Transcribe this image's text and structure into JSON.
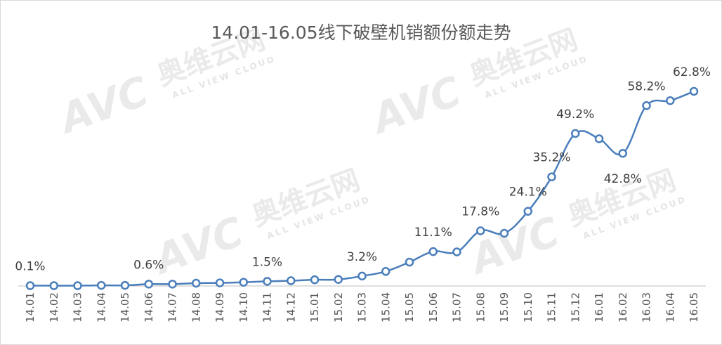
{
  "chart_data": {
    "type": "line",
    "title": "14.01-16.05线下破壁机销额份额走势",
    "xlabel": "",
    "ylabel": "",
    "categories": [
      "14.01",
      "14.02",
      "14.03",
      "14.04",
      "14.05",
      "14.06",
      "14.07",
      "14.08",
      "14.09",
      "14.10",
      "14.11",
      "14.12",
      "15.01",
      "15.02",
      "15.03",
      "15.04",
      "15.05",
      "15.06",
      "15.07",
      "15.08",
      "15.09",
      "15.10",
      "15.11",
      "15.12",
      "16.01",
      "16.02",
      "16.03",
      "16.04",
      "16.05"
    ],
    "series": [
      {
        "values": [
          0.1,
          0.1,
          0.1,
          0.2,
          0.2,
          0.6,
          0.6,
          0.9,
          1.0,
          1.2,
          1.5,
          1.7,
          2.0,
          2.1,
          3.2,
          4.7,
          7.7,
          11.1,
          11.0,
          17.8,
          17.0,
          24.1,
          35.2,
          49.2,
          47.5,
          42.8,
          58.2,
          59.8,
          62.8
        ],
        "color": "#4a7ebb"
      }
    ],
    "data_labels": [
      {
        "index": 0,
        "text": "0.1%"
      },
      {
        "index": 5,
        "text": "0.6%"
      },
      {
        "index": 10,
        "text": "1.5%"
      },
      {
        "index": 14,
        "text": "3.2%"
      },
      {
        "index": 17,
        "text": "11.1%"
      },
      {
        "index": 19,
        "text": "17.8%"
      },
      {
        "index": 21,
        "text": "24.1%"
      },
      {
        "index": 22,
        "text": "35.2%"
      },
      {
        "index": 23,
        "text": "49.2%"
      },
      {
        "index": 25,
        "text": "42.8%"
      },
      {
        "index": 26,
        "text": "58.2%"
      },
      {
        "index": 28,
        "text": "62.8%"
      }
    ],
    "ylim": [
      0,
      70
    ],
    "grid": false,
    "legend": "none"
  },
  "watermark": {
    "brand": "AVC",
    "name_cn": "奥维云网",
    "name_en": "ALL VIEW CLOUD"
  }
}
